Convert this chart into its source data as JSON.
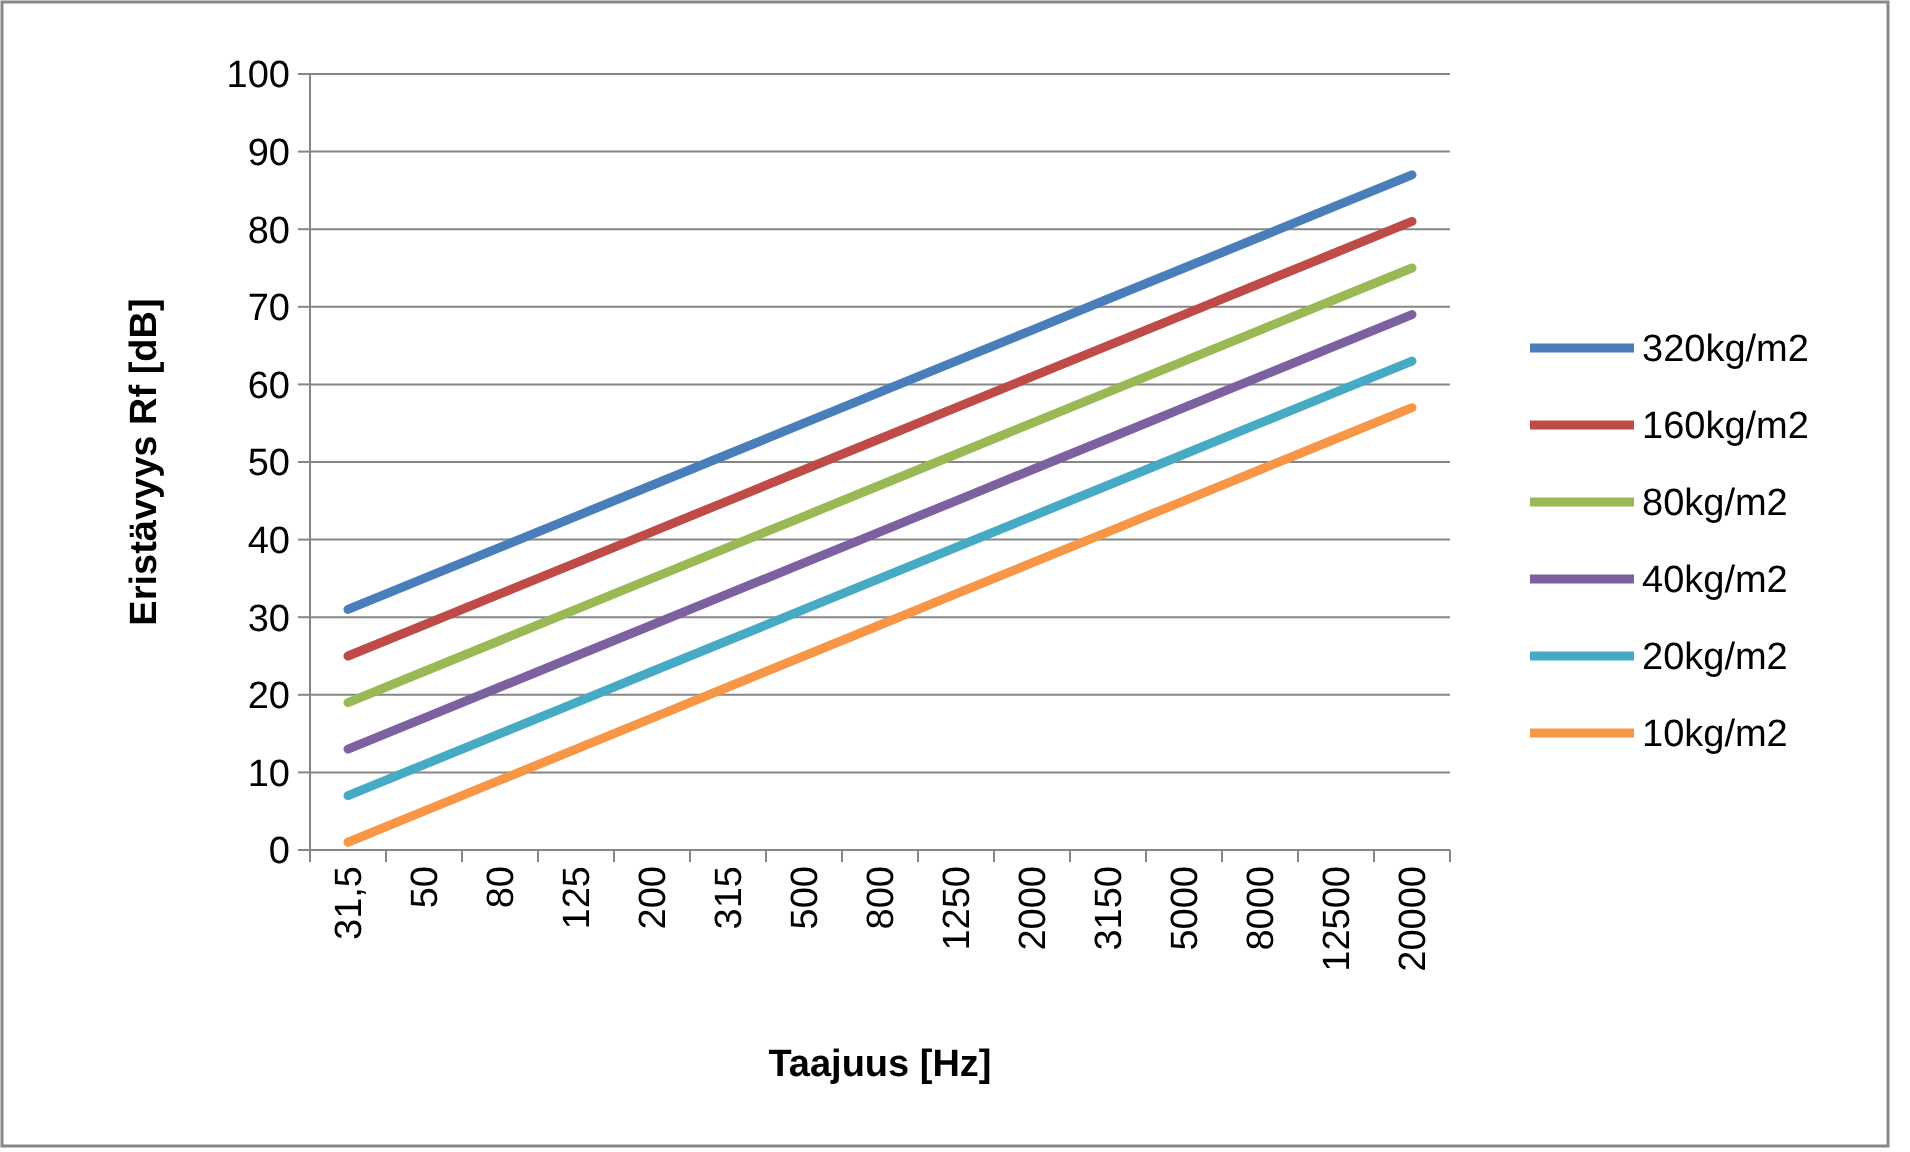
{
  "chart_data": {
    "type": "line",
    "xlabel": "Taajuus [Hz]",
    "ylabel": "Eristävyys Rf [dB]",
    "categories": [
      "31,5",
      "50",
      "80",
      "125",
      "200",
      "315",
      "500",
      "800",
      "1250",
      "2000",
      "3150",
      "5000",
      "8000",
      "12500",
      "20000"
    ],
    "ylim": [
      0,
      100
    ],
    "yticks": [
      0,
      10,
      20,
      30,
      40,
      50,
      60,
      70,
      80,
      90,
      100
    ],
    "grid": "y",
    "legend": "right",
    "marker": "none",
    "line_style": "solid",
    "series": [
      {
        "name": "320kg/m2",
        "color": "#4a7ebb",
        "values": [
          31,
          35,
          39,
          43,
          47,
          51,
          55,
          59,
          63,
          67,
          71,
          75,
          79,
          83,
          87
        ]
      },
      {
        "name": "160kg/m2",
        "color": "#be4b48",
        "values": [
          25,
          29,
          33,
          37,
          41,
          45,
          49,
          53,
          57,
          61,
          65,
          69,
          73,
          77,
          81
        ]
      },
      {
        "name": "80kg/m2",
        "color": "#98b954",
        "values": [
          19,
          23,
          27,
          31,
          35,
          39,
          43,
          47,
          51,
          55,
          59,
          63,
          67,
          71,
          75
        ]
      },
      {
        "name": "40kg/m2",
        "color": "#7d60a0",
        "values": [
          13,
          17,
          21,
          25,
          29,
          33,
          37,
          41,
          45,
          49,
          53,
          57,
          61,
          65,
          69
        ]
      },
      {
        "name": "20kg/m2",
        "color": "#46aac5",
        "values": [
          7,
          11,
          15,
          19,
          23,
          27,
          31,
          35,
          39,
          43,
          47,
          51,
          55,
          59,
          63
        ]
      },
      {
        "name": "10kg/m2",
        "color": "#f79646",
        "values": [
          1,
          5,
          9,
          13,
          17,
          21,
          25,
          29,
          33,
          37,
          41,
          45,
          49,
          53,
          57
        ]
      }
    ]
  }
}
